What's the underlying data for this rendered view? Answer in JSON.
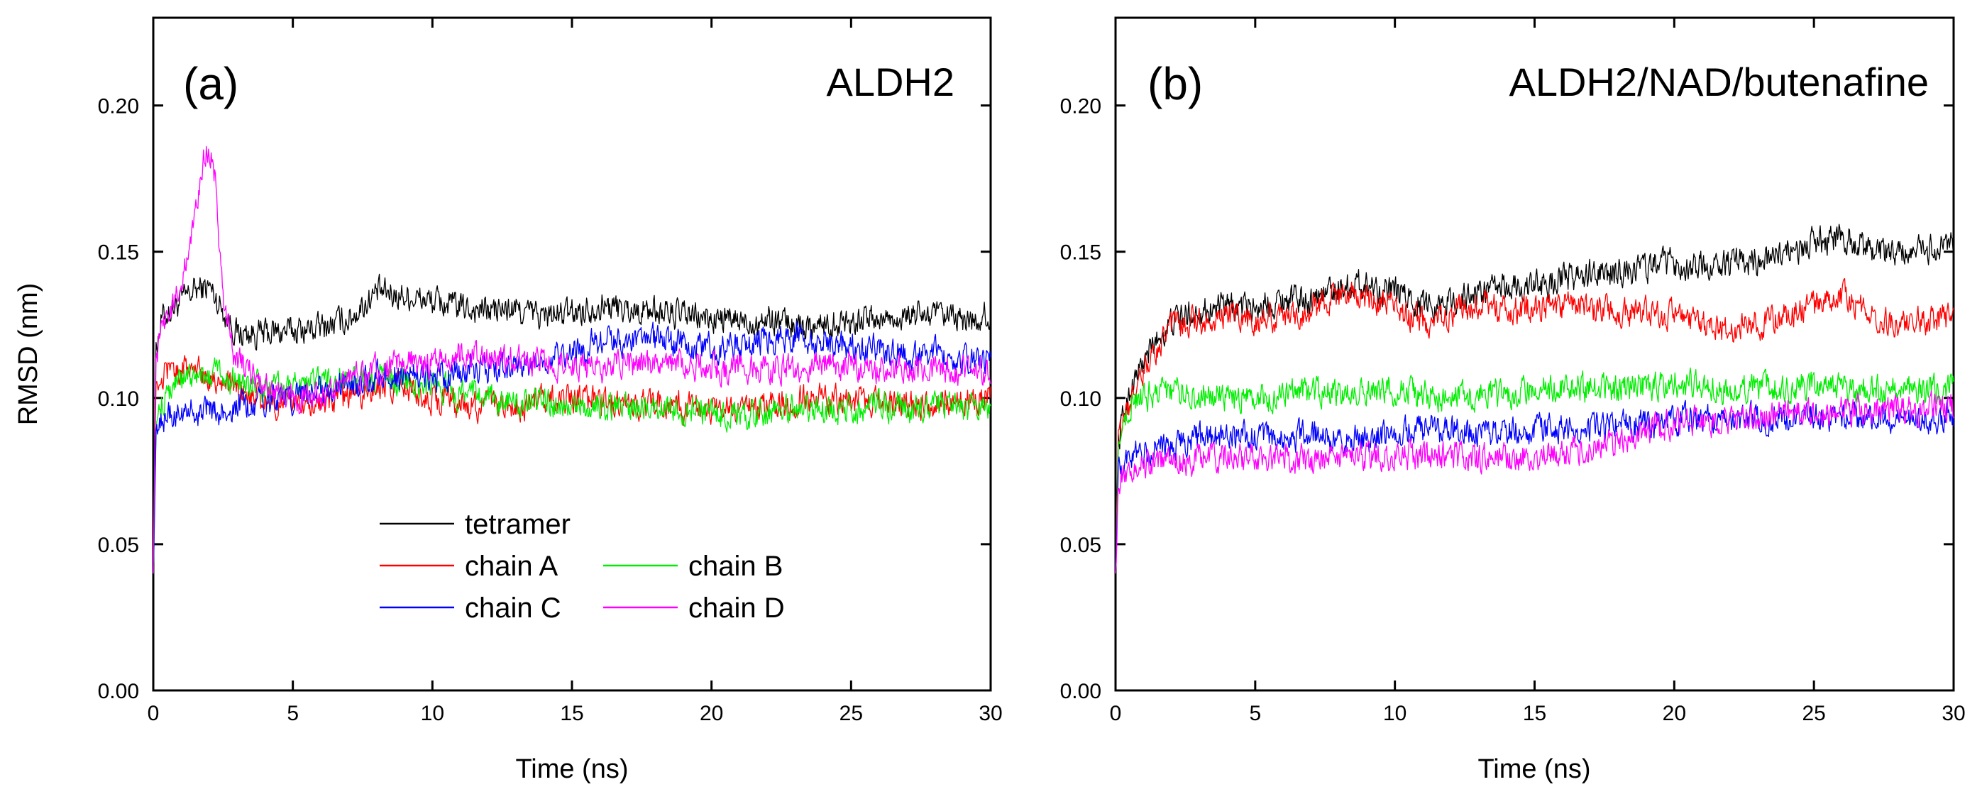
{
  "chart_data": [
    {
      "type": "line",
      "panel_label": "(a)",
      "title": "ALDH2",
      "xlabel": "Time (ns)",
      "ylabel": "RMSD (nm)",
      "xlim": [
        0,
        30
      ],
      "ylim": [
        0,
        0.23
      ],
      "xticks": [
        0,
        5,
        10,
        15,
        20,
        25,
        30
      ],
      "xtick_labels": [
        "0",
        "5",
        "10",
        "15",
        "20",
        "25",
        "30"
      ],
      "yticks": [
        0,
        0.05,
        0.1,
        0.15,
        0.2
      ],
      "ytick_labels": [
        "0.00",
        "0.05",
        "0.10",
        "0.15",
        "0.20"
      ],
      "legend_location": "lower-center",
      "series": [
        {
          "name": "tetramer",
          "color": "#000000",
          "x": [
            0,
            0.1,
            0.3,
            0.6,
            1,
            1.5,
            2,
            2.5,
            3,
            4,
            5,
            6,
            7,
            8,
            9,
            10,
            11,
            12,
            13,
            14,
            15,
            16,
            17,
            18,
            19,
            20,
            21,
            22,
            23,
            24,
            25,
            26,
            27,
            28,
            29,
            30
          ],
          "values": [
            0.04,
            0.118,
            0.127,
            0.13,
            0.133,
            0.137,
            0.138,
            0.13,
            0.122,
            0.122,
            0.123,
            0.124,
            0.127,
            0.136,
            0.135,
            0.133,
            0.131,
            0.13,
            0.13,
            0.128,
            0.129,
            0.132,
            0.13,
            0.13,
            0.128,
            0.127,
            0.126,
            0.127,
            0.125,
            0.125,
            0.127,
            0.127,
            0.128,
            0.128,
            0.126,
            0.128
          ]
        },
        {
          "name": "chain A",
          "color": "#ff0000",
          "x": [
            0,
            0.1,
            0.3,
            0.6,
            1,
            1.5,
            2,
            2.5,
            3,
            4,
            5,
            6,
            7,
            8,
            9,
            10,
            11,
            12,
            13,
            14,
            15,
            16,
            17,
            18,
            19,
            20,
            21,
            22,
            23,
            24,
            25,
            26,
            27,
            28,
            29,
            30
          ],
          "values": [
            0.04,
            0.105,
            0.108,
            0.11,
            0.11,
            0.11,
            0.108,
            0.106,
            0.102,
            0.099,
            0.097,
            0.098,
            0.1,
            0.104,
            0.104,
            0.1,
            0.098,
            0.097,
            0.097,
            0.099,
            0.1,
            0.099,
            0.098,
            0.098,
            0.097,
            0.096,
            0.095,
            0.097,
            0.099,
            0.1,
            0.098,
            0.099,
            0.098,
            0.098,
            0.099,
            0.1
          ]
        },
        {
          "name": "chain B",
          "color": "#00ee00",
          "x": [
            0,
            0.1,
            0.3,
            0.6,
            1,
            1.5,
            2,
            2.5,
            3,
            4,
            5,
            6,
            7,
            8,
            9,
            10,
            11,
            12,
            13,
            14,
            15,
            16,
            17,
            18,
            19,
            20,
            21,
            22,
            23,
            24,
            25,
            26,
            27,
            28,
            29,
            30
          ],
          "values": [
            0.04,
            0.09,
            0.098,
            0.103,
            0.106,
            0.107,
            0.108,
            0.107,
            0.105,
            0.103,
            0.104,
            0.106,
            0.106,
            0.107,
            0.106,
            0.104,
            0.101,
            0.1,
            0.099,
            0.098,
            0.098,
            0.097,
            0.097,
            0.096,
            0.096,
            0.095,
            0.094,
            0.095,
            0.097,
            0.096,
            0.096,
            0.097,
            0.096,
            0.097,
            0.096,
            0.096
          ]
        },
        {
          "name": "chain C",
          "color": "#0000ff",
          "x": [
            0,
            0.1,
            0.3,
            0.6,
            1,
            1.5,
            2,
            2.5,
            3,
            4,
            5,
            6,
            7,
            8,
            9,
            10,
            11,
            12,
            13,
            14,
            15,
            16,
            17,
            18,
            19,
            20,
            21,
            22,
            23,
            24,
            25,
            26,
            27,
            28,
            29,
            30
          ],
          "values": [
            0.04,
            0.092,
            0.093,
            0.094,
            0.095,
            0.095,
            0.096,
            0.096,
            0.097,
            0.099,
            0.1,
            0.102,
            0.104,
            0.108,
            0.107,
            0.107,
            0.109,
            0.11,
            0.111,
            0.113,
            0.115,
            0.12,
            0.119,
            0.12,
            0.118,
            0.118,
            0.117,
            0.119,
            0.121,
            0.119,
            0.117,
            0.117,
            0.115,
            0.115,
            0.114,
            0.113
          ]
        },
        {
          "name": "chain D",
          "color": "#ff00ff",
          "x": [
            0,
            0.1,
            0.3,
            0.6,
            1,
            1.3,
            1.6,
            1.8,
            2,
            2.2,
            2.5,
            2.8,
            3,
            4,
            5,
            6,
            7,
            8,
            9,
            10,
            11,
            12,
            13,
            14,
            15,
            16,
            17,
            18,
            19,
            20,
            21,
            22,
            23,
            24,
            25,
            26,
            27,
            28,
            29,
            30
          ],
          "values": [
            0.04,
            0.115,
            0.122,
            0.128,
            0.14,
            0.15,
            0.168,
            0.182,
            0.186,
            0.175,
            0.135,
            0.118,
            0.113,
            0.104,
            0.099,
            0.1,
            0.105,
            0.11,
            0.112,
            0.112,
            0.115,
            0.113,
            0.113,
            0.112,
            0.111,
            0.11,
            0.112,
            0.111,
            0.111,
            0.11,
            0.11,
            0.11,
            0.11,
            0.112,
            0.111,
            0.11,
            0.111,
            0.11,
            0.109,
            0.11
          ]
        }
      ]
    },
    {
      "type": "line",
      "panel_label": "(b)",
      "title": "ALDH2/NAD/butenafine",
      "xlabel": "Time (ns)",
      "ylabel": "",
      "xlim": [
        0,
        30
      ],
      "ylim": [
        0,
        0.23
      ],
      "xticks": [
        0,
        5,
        10,
        15,
        20,
        25,
        30
      ],
      "xtick_labels": [
        "0",
        "5",
        "10",
        "15",
        "20",
        "25",
        "30"
      ],
      "yticks": [
        0,
        0.05,
        0.1,
        0.15,
        0.2
      ],
      "ytick_labels": [
        "0.00",
        "0.05",
        "0.10",
        "0.15",
        "0.20"
      ],
      "series": [
        {
          "name": "tetramer",
          "color": "#000000",
          "x": [
            0,
            0.1,
            0.3,
            0.6,
            1,
            1.5,
            2,
            3,
            4,
            5,
            6,
            7,
            8,
            9,
            10,
            11,
            12,
            13,
            14,
            15,
            16,
            17,
            18,
            19,
            20,
            21,
            22,
            23,
            24,
            25,
            26,
            27,
            28,
            29,
            30
          ],
          "values": [
            0.04,
            0.085,
            0.095,
            0.105,
            0.112,
            0.12,
            0.126,
            0.13,
            0.131,
            0.131,
            0.134,
            0.134,
            0.138,
            0.139,
            0.136,
            0.132,
            0.133,
            0.136,
            0.138,
            0.138,
            0.141,
            0.142,
            0.143,
            0.145,
            0.146,
            0.145,
            0.146,
            0.147,
            0.15,
            0.153,
            0.155,
            0.15,
            0.149,
            0.15,
            0.152
          ]
        },
        {
          "name": "chain A",
          "color": "#ff0000",
          "x": [
            0,
            0.1,
            0.3,
            0.6,
            1,
            1.5,
            2,
            3,
            4,
            5,
            6,
            7,
            8,
            9,
            10,
            11,
            12,
            13,
            14,
            15,
            16,
            17,
            18,
            19,
            20,
            21,
            22,
            23,
            24,
            25,
            26,
            27,
            28,
            29,
            30
          ],
          "values": [
            0.04,
            0.085,
            0.093,
            0.1,
            0.108,
            0.117,
            0.123,
            0.126,
            0.127,
            0.127,
            0.128,
            0.13,
            0.135,
            0.134,
            0.13,
            0.126,
            0.129,
            0.131,
            0.131,
            0.13,
            0.131,
            0.13,
            0.13,
            0.129,
            0.128,
            0.124,
            0.124,
            0.125,
            0.128,
            0.132,
            0.135,
            0.128,
            0.126,
            0.126,
            0.128
          ]
        },
        {
          "name": "chain B",
          "color": "#00ee00",
          "x": [
            0,
            0.1,
            0.3,
            0.6,
            1,
            1.5,
            2,
            3,
            4,
            5,
            6,
            7,
            8,
            9,
            10,
            11,
            12,
            13,
            14,
            15,
            16,
            17,
            18,
            19,
            20,
            21,
            22,
            23,
            24,
            25,
            26,
            27,
            28,
            29,
            30
          ],
          "values": [
            0.04,
            0.085,
            0.093,
            0.098,
            0.101,
            0.102,
            0.102,
            0.101,
            0.1,
            0.1,
            0.101,
            0.102,
            0.102,
            0.103,
            0.103,
            0.101,
            0.1,
            0.101,
            0.102,
            0.102,
            0.103,
            0.103,
            0.103,
            0.104,
            0.105,
            0.104,
            0.103,
            0.104,
            0.104,
            0.104,
            0.103,
            0.103,
            0.103,
            0.103,
            0.104
          ]
        },
        {
          "name": "chain C",
          "color": "#0000ff",
          "x": [
            0,
            0.1,
            0.3,
            0.6,
            1,
            1.5,
            2,
            3,
            4,
            5,
            6,
            7,
            8,
            9,
            10,
            11,
            12,
            13,
            14,
            15,
            16,
            17,
            18,
            19,
            20,
            21,
            22,
            23,
            24,
            25,
            26,
            27,
            28,
            29,
            30
          ],
          "values": [
            0.04,
            0.075,
            0.078,
            0.08,
            0.082,
            0.083,
            0.084,
            0.086,
            0.087,
            0.087,
            0.087,
            0.087,
            0.086,
            0.086,
            0.088,
            0.089,
            0.089,
            0.088,
            0.088,
            0.089,
            0.09,
            0.09,
            0.09,
            0.091,
            0.092,
            0.093,
            0.093,
            0.093,
            0.093,
            0.094,
            0.093,
            0.093,
            0.093,
            0.093,
            0.093
          ]
        },
        {
          "name": "chain D",
          "color": "#ff00ff",
          "x": [
            0,
            0.1,
            0.3,
            0.6,
            1,
            1.5,
            2,
            3,
            4,
            5,
            6,
            7,
            8,
            9,
            10,
            11,
            12,
            13,
            14,
            15,
            16,
            17,
            18,
            19,
            20,
            21,
            22,
            23,
            24,
            25,
            26,
            27,
            28,
            29,
            30
          ],
          "values": [
            0.04,
            0.07,
            0.074,
            0.076,
            0.077,
            0.078,
            0.078,
            0.079,
            0.08,
            0.079,
            0.08,
            0.079,
            0.08,
            0.08,
            0.08,
            0.08,
            0.08,
            0.079,
            0.079,
            0.08,
            0.081,
            0.083,
            0.086,
            0.089,
            0.091,
            0.092,
            0.093,
            0.094,
            0.095,
            0.096,
            0.096,
            0.096,
            0.096,
            0.096,
            0.097
          ]
        }
      ]
    }
  ]
}
